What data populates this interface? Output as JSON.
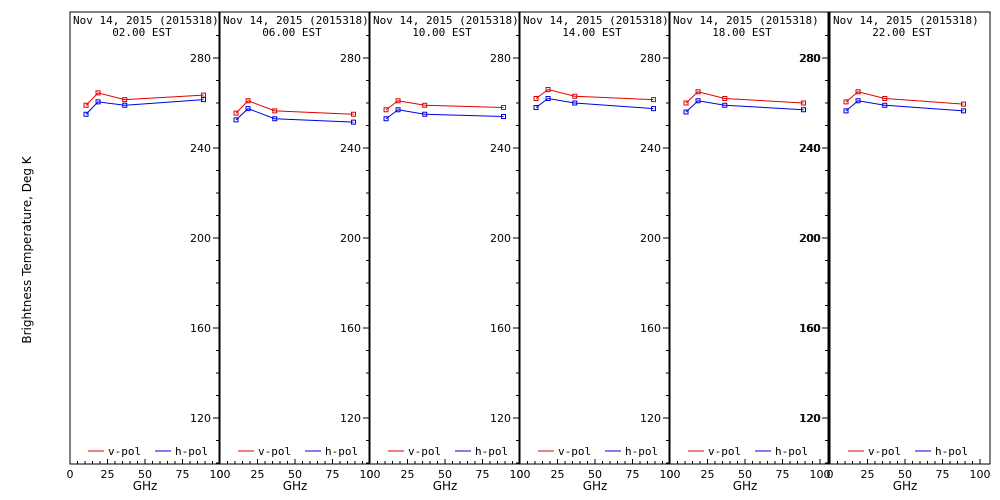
{
  "chart_data": {
    "type": "line",
    "ylabel": "Brightness Temperature, Deg K",
    "xlabel": "GHz",
    "xlim": [
      0,
      100
    ],
    "ylim": [
      100,
      295
    ],
    "yticks": [
      120,
      160,
      200,
      240,
      280
    ],
    "xticks": [
      0,
      25,
      50,
      75,
      100
    ],
    "legend_position": "bottom",
    "grid": false,
    "colors": {
      "v-pol": "#e00000",
      "h-pol": "#0000e0"
    },
    "panels": [
      {
        "title_line1": "Nov 14, 2015 (2015318)",
        "title_line2": "02.00 EST",
        "x": [
          10.7,
          18.7,
          36.5,
          89.0
        ],
        "series": [
          {
            "name": "v-pol",
            "values": [
              259,
              264.5,
              261.5,
              263.5
            ]
          },
          {
            "name": "h-pol",
            "values": [
              255,
              260.5,
              259,
              261.5
            ]
          }
        ]
      },
      {
        "title_line1": "Nov 14, 2015 (2015318)",
        "title_line2": "06.00 EST",
        "x": [
          10.7,
          18.7,
          36.5,
          89.0
        ],
        "series": [
          {
            "name": "v-pol",
            "values": [
              255.5,
              261,
              256.5,
              255
            ]
          },
          {
            "name": "h-pol",
            "values": [
              252.5,
              257.5,
              253,
              251.5
            ]
          }
        ]
      },
      {
        "title_line1": "Nov 14, 2015 (2015318)",
        "title_line2": "10.00 EST",
        "x": [
          10.7,
          18.7,
          36.5,
          89.0
        ],
        "series": [
          {
            "name": "v-pol",
            "values": [
              257,
              261,
              259,
              258
            ]
          },
          {
            "name": "h-pol",
            "values": [
              253,
              257,
              255,
              254
            ]
          }
        ]
      },
      {
        "title_line1": "Nov 14, 2015 (2015318)",
        "title_line2": "14.00 EST",
        "x": [
          10.7,
          18.7,
          36.5,
          89.0
        ],
        "series": [
          {
            "name": "v-pol",
            "values": [
              262,
              266,
              263,
              261.5
            ]
          },
          {
            "name": "h-pol",
            "values": [
              258,
              262,
              260,
              257.5
            ]
          }
        ]
      },
      {
        "title_line1": "Nov 14, 2015 (2015318)",
        "title_line2": "18.00 EST",
        "x": [
          10.7,
          18.7,
          36.5,
          89.0
        ],
        "series": [
          {
            "name": "v-pol",
            "values": [
              260,
              265,
              262,
              260
            ]
          },
          {
            "name": "h-pol",
            "values": [
              256,
              261,
              259,
              257
            ]
          }
        ]
      },
      {
        "title_line1": "Nov 14, 2015 (2015318)",
        "title_line2": "22.00 EST",
        "x": [
          10.7,
          18.7,
          36.5,
          89.0
        ],
        "series": [
          {
            "name": "v-pol",
            "values": [
              260.5,
              265,
              262,
              259.5
            ]
          },
          {
            "name": "h-pol",
            "values": [
              256.5,
              261,
              259,
              256.5
            ]
          }
        ]
      }
    ]
  }
}
